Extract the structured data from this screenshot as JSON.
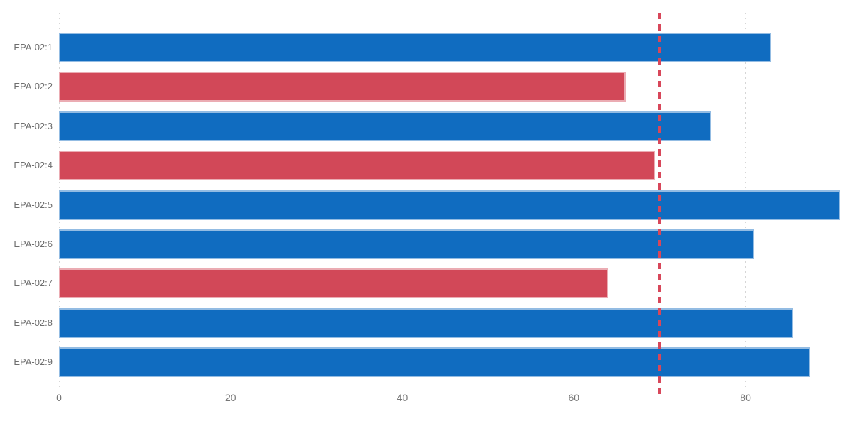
{
  "chart_data": {
    "type": "bar",
    "orientation": "horizontal",
    "title": "",
    "xlabel": "",
    "ylabel": "",
    "categories": [
      "EPA-02:1",
      "EPA-02:2",
      "EPA-02:3",
      "EPA-02:4",
      "EPA-02:5",
      "EPA-02:6",
      "EPA-02:7",
      "EPA-02:8",
      "EPA-02:9"
    ],
    "values": [
      83,
      66,
      76,
      69.5,
      91,
      81,
      64,
      85.5,
      87.5
    ],
    "bar_colors": [
      "#106CC0",
      "#D24858",
      "#106CC0",
      "#D24858",
      "#106CC0",
      "#106CC0",
      "#D24858",
      "#106CC0",
      "#106CC0"
    ],
    "x_ticks": [
      0,
      20,
      40,
      60,
      80
    ],
    "xlim": [
      0,
      92.4
    ],
    "grid": "vertical-dotted",
    "legend": "none",
    "reference_line": {
      "value": 70,
      "style": "dashed",
      "color": "#D8475A"
    }
  },
  "colors": {
    "bar_blue": "#106CC0",
    "bar_red": "#D24858",
    "reference_line": "#D8475A",
    "gridline": "#D6D6D6",
    "category_label": "#6E6E6E",
    "tick_label": "#767676",
    "background": "#FFFFFF"
  }
}
